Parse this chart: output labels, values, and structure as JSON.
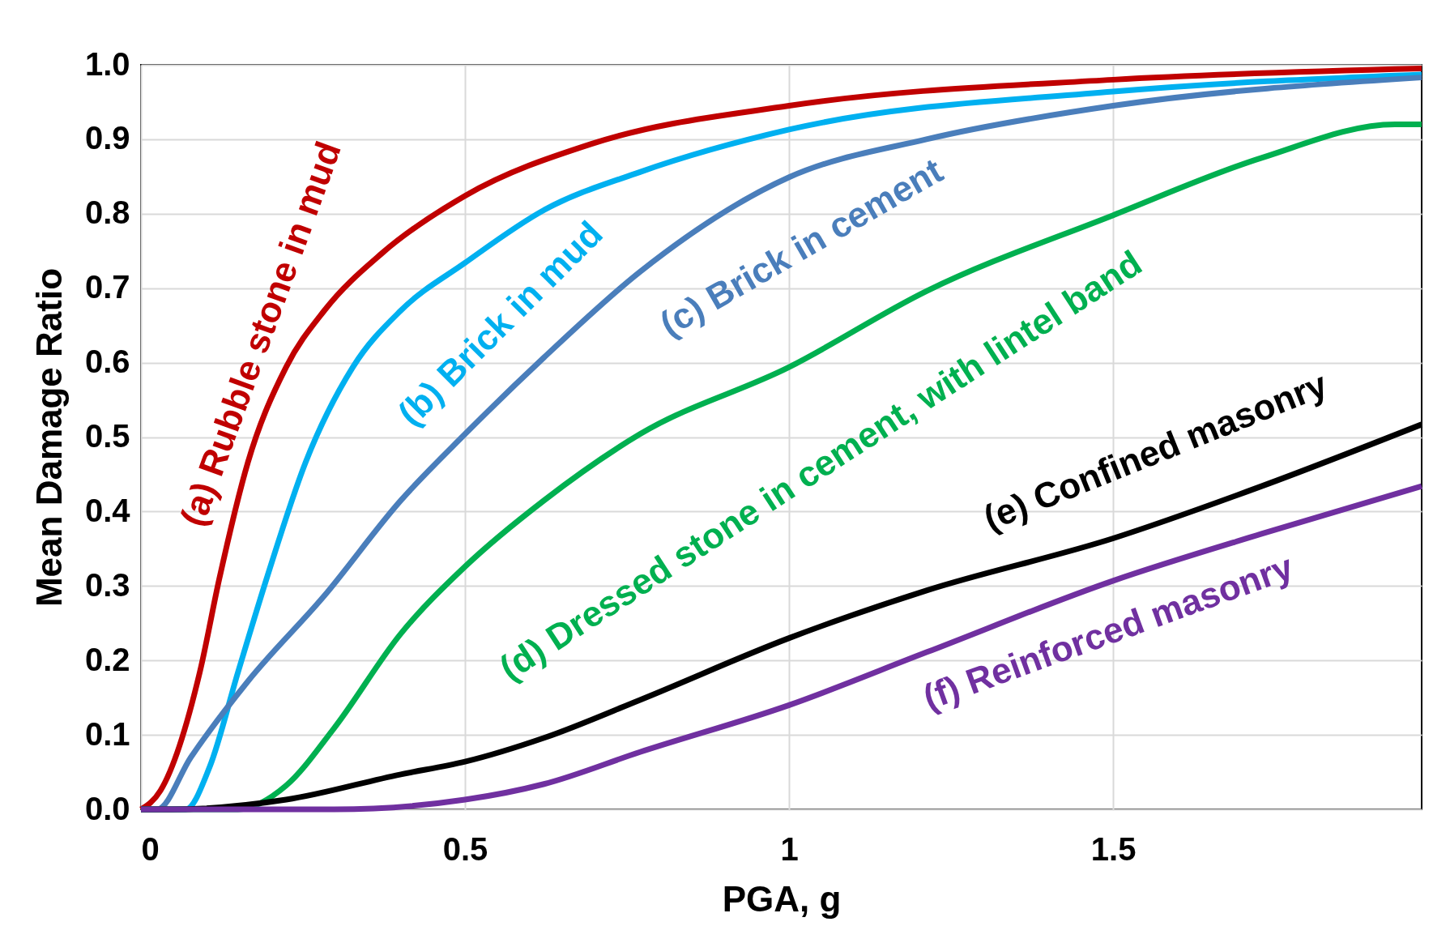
{
  "chart_data": {
    "type": "line",
    "xlabel": "PGA, g",
    "ylabel": "Mean Damage Ratio",
    "xlim": [
      0,
      1.976
    ],
    "xticks": [
      0,
      0.5,
      1,
      1.5
    ],
    "ylim": [
      0,
      1
    ],
    "yticks": [
      {
        "value": 0,
        "label": "0.0"
      },
      0.1,
      0.2,
      0.3,
      0.4,
      0.5,
      0.6,
      0.7,
      0.8,
      0.9,
      {
        "value": 1,
        "label": "1.0"
      }
    ],
    "grid": true,
    "line_style": "solid",
    "marker": "none",
    "series": [
      {
        "name": "(a) Rubble stone in mud",
        "color": "#c00000",
        "x": [
          0,
          0.03,
          0.091,
          0.121,
          0.165,
          0.224,
          0.283,
          0.372,
          0.5,
          0.696,
          1.0,
          1.5,
          1.976
        ],
        "values": [
          0,
          0.025,
          0.185,
          0.31,
          0.466,
          0.594,
          0.67,
          0.747,
          0.824,
          0.894,
          0.945,
          0.98,
          0.995
        ]
      },
      {
        "name": "(b) Brick in mud",
        "color": "#00b0f0",
        "x": [
          0,
          0.069,
          0.106,
          0.15,
          0.195,
          0.254,
          0.327,
          0.401,
          0.5,
          0.622,
          0.77,
          1.0,
          1.5,
          1.976
        ],
        "values": [
          0,
          0,
          0.057,
          0.185,
          0.313,
          0.466,
          0.594,
          0.67,
          0.734,
          0.805,
          0.856,
          0.913,
          0.964,
          0.987
        ]
      },
      {
        "name": "(c) Brick in cement",
        "color": "#4a7ebb",
        "x": [
          0,
          0.025,
          0.077,
          0.165,
          0.283,
          0.401,
          0.5,
          0.622,
          0.77,
          1.0,
          1.212,
          1.5,
          1.976
        ],
        "values": [
          0,
          0,
          0.07,
          0.172,
          0.287,
          0.415,
          0.504,
          0.607,
          0.722,
          0.849,
          0.9,
          0.945,
          0.983
        ]
      },
      {
        "name": "(d) Dressed stone in cement, with lintel band",
        "color": "#00b050",
        "x": [
          0,
          0.15,
          0.224,
          0.298,
          0.401,
          0.5,
          0.622,
          0.77,
          1.0,
          1.212,
          1.5,
          1.729,
          1.935,
          1.976
        ],
        "values": [
          0,
          0,
          0.032,
          0.109,
          0.236,
          0.326,
          0.415,
          0.504,
          0.594,
          0.696,
          0.798,
          0.875,
          0.92,
          0.92
        ]
      },
      {
        "name": "(e) Confined masonry",
        "color": "#000000",
        "x": [
          0,
          0.047,
          0.224,
          0.401,
          0.5,
          0.622,
          0.77,
          1.0,
          1.212,
          1.5,
          1.729,
          1.976
        ],
        "values": [
          0,
          0,
          0.013,
          0.047,
          0.064,
          0.096,
          0.147,
          0.23,
          0.294,
          0.364,
          0.434,
          0.517
        ]
      },
      {
        "name": "(f) Reinforced masonry",
        "color": "#7030a0",
        "x": [
          0,
          0.298,
          0.5,
          0.622,
          0.77,
          1.0,
          1.212,
          1.5,
          1.729,
          1.976
        ],
        "values": [
          0,
          0,
          0.013,
          0.034,
          0.077,
          0.14,
          0.211,
          0.307,
          0.37,
          0.434
        ]
      }
    ]
  }
}
